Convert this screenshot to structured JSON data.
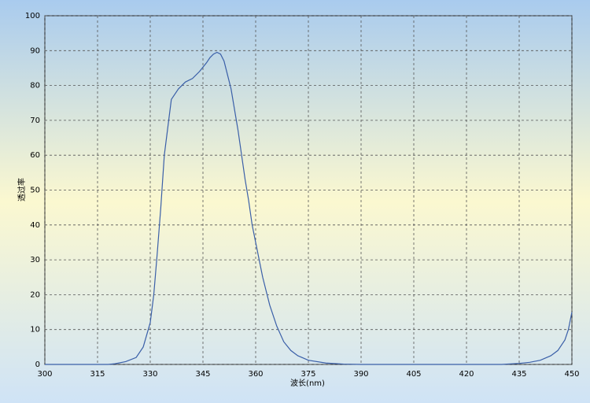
{
  "chart_data": {
    "type": "line",
    "x_label": "波长(nm)",
    "y_label": "透过率",
    "x": [
      300,
      305,
      310,
      315,
      318,
      320,
      323,
      326,
      328,
      330,
      331,
      332,
      333,
      334,
      335,
      336,
      338,
      340,
      342,
      344,
      346,
      347,
      348,
      349,
      350,
      351,
      352,
      353,
      354,
      355,
      356,
      357,
      358,
      359,
      360,
      362,
      364,
      366,
      368,
      370,
      372,
      375,
      380,
      385,
      390,
      400,
      410,
      420,
      430,
      435,
      438,
      441,
      444,
      446,
      448,
      449,
      450
    ],
    "series": [
      {
        "color": "#3a5fa8",
        "values": [
          0,
          0,
          0,
          0,
          0,
          0.2,
          0.8,
          2,
          5,
          12,
          20,
          32,
          45,
          60,
          68,
          76,
          79,
          81,
          82,
          84,
          86.5,
          88,
          89,
          89.5,
          89,
          87,
          83,
          79,
          73,
          67,
          60,
          53,
          47,
          40,
          35,
          25,
          17,
          11,
          6.5,
          4,
          2.5,
          1.2,
          0.4,
          0.1,
          0,
          0,
          0,
          0,
          0,
          0.3,
          0.6,
          1.2,
          2.5,
          4,
          7,
          10,
          15
        ]
      }
    ],
    "xlim": [
      300,
      450
    ],
    "xticks": [
      300,
      315,
      330,
      345,
      360,
      375,
      390,
      405,
      420,
      435,
      450
    ],
    "ylim": [
      0,
      100
    ],
    "yticks": [
      0,
      10,
      20,
      30,
      40,
      50,
      60,
      70,
      80,
      90,
      100
    ],
    "grid": true
  }
}
